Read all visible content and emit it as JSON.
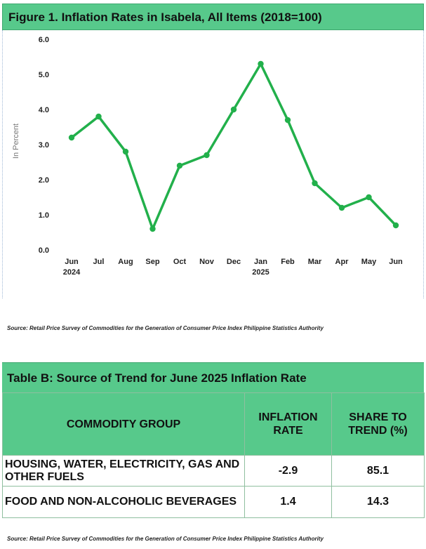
{
  "figure": {
    "title": "Figure 1.  Inflation Rates in Isabela, All Items (2018=100)",
    "source": "Source: Retail Price Survey of Commodities for the Generation of Consumer Price Index Philippine Statistics Authority"
  },
  "chart_data": {
    "type": "line",
    "categories": [
      "Jun",
      "Jul",
      "Aug",
      "Sep",
      "Oct",
      "Nov",
      "Dec",
      "Jan",
      "Feb",
      "Mar",
      "Apr",
      "May",
      "Jun"
    ],
    "year_labels": [
      "2024",
      "",
      "",
      "",
      "",
      "",
      "",
      "2025",
      "",
      "",
      "",
      "",
      ""
    ],
    "values": [
      3.2,
      3.8,
      2.8,
      0.6,
      2.4,
      2.7,
      4.0,
      5.3,
      3.7,
      1.9,
      1.2,
      1.5,
      0.7
    ],
    "ylabel": "In Percent",
    "ylim": [
      0,
      6
    ],
    "yticks": [
      "0.0",
      "1.0",
      "2.0",
      "3.0",
      "4.0",
      "5.0",
      "6.0"
    ],
    "grid": false,
    "line_color": "#22b04b"
  },
  "table": {
    "title": "Table B: Source of Trend for June 2025 Inflation Rate",
    "headers": [
      "COMMODITY GROUP",
      "INFLATION RATE",
      "SHARE TO TREND (%)"
    ],
    "rows": [
      {
        "group": "HOUSING, WATER, ELECTRICITY, GAS AND OTHER FUELS",
        "rate": "-2.9",
        "share": "85.1"
      },
      {
        "group": "FOOD AND NON-ALCOHOLIC BEVERAGES",
        "rate": "1.4",
        "share": "14.3"
      }
    ],
    "source": "Source: Retail Price Survey of Commodities for the Generation of Consumer Price Index Philippine Statistics Authority"
  },
  "colors": {
    "header_green": "#57c98b",
    "line_green": "#22b04b"
  }
}
